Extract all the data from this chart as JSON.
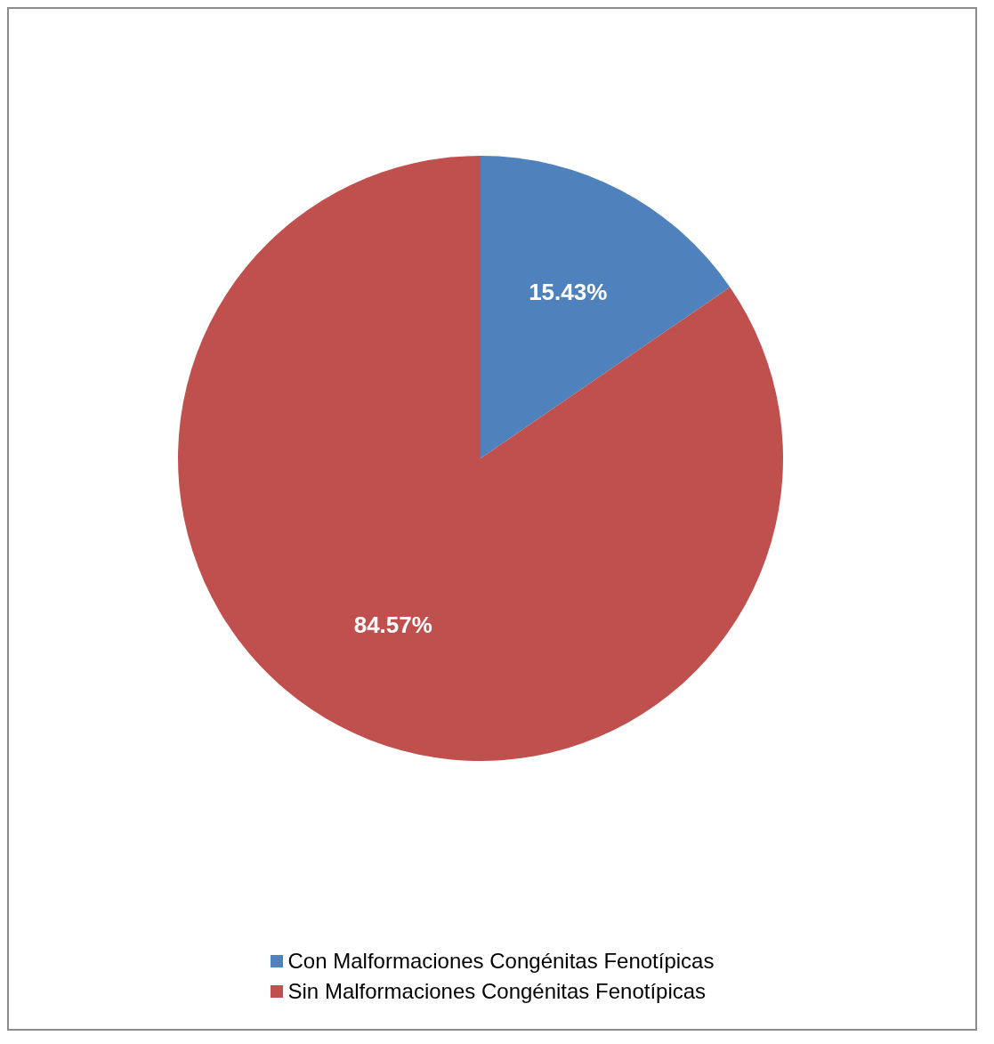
{
  "chart_data": {
    "type": "pie",
    "categories": [
      "Con Malformaciones Congénitas Fenotípicas",
      "Sin Malformaciones Congénitas Fenotípicas"
    ],
    "values": [
      15.43,
      84.57
    ],
    "colors": [
      "#4f81bd",
      "#c0504d"
    ],
    "value_labels": [
      "15.43%",
      "84.57%"
    ],
    "legend": "bottom"
  }
}
